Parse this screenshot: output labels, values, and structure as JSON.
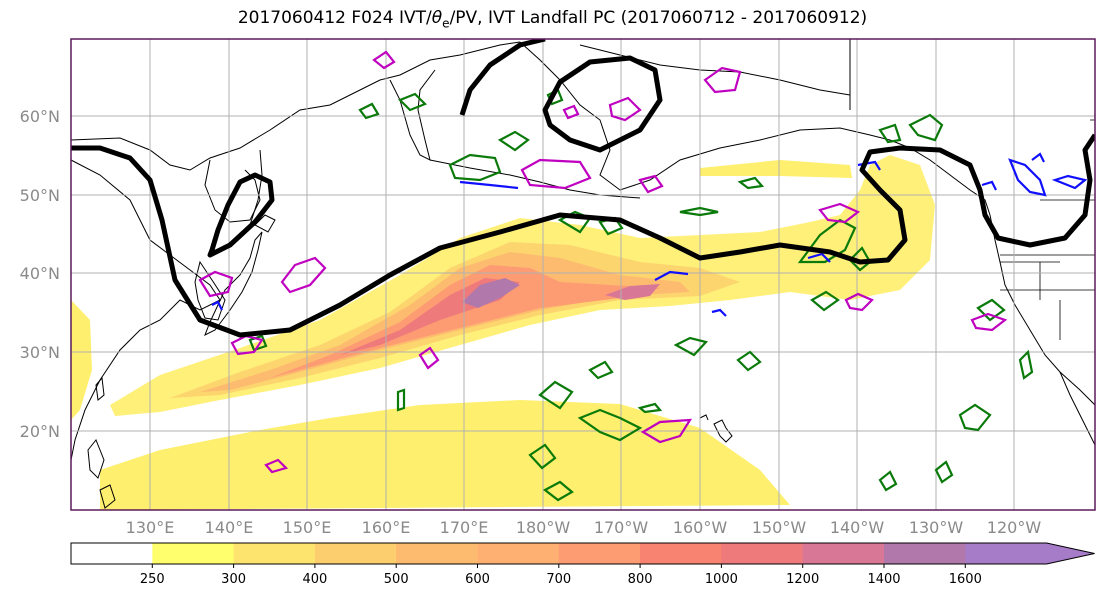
{
  "title": {
    "prefix": "2017060412 F024 IVT/",
    "theta": "θ",
    "theta_sub": "e",
    "suffix": "/PV, IVT Landfall PC (2017060712 - 2017060912)"
  },
  "map": {
    "projection": "equirectangular",
    "lon_range": [
      120,
      -113
    ],
    "lat_range": [
      10,
      70
    ],
    "lat_ticks": [
      {
        "lat": 60,
        "label": "60°N"
      },
      {
        "lat": 50,
        "label": "50°N"
      },
      {
        "lat": 40,
        "label": "40°N"
      },
      {
        "lat": 30,
        "label": "30°N"
      },
      {
        "lat": 20,
        "label": "20°N"
      }
    ],
    "lon_ticks": [
      {
        "lon": 130,
        "label": "130°E"
      },
      {
        "lon": 140,
        "label": "140°E"
      },
      {
        "lon": 150,
        "label": "150°E"
      },
      {
        "lon": 160,
        "label": "160°E"
      },
      {
        "lon": 170,
        "label": "170°E"
      },
      {
        "lon": 180,
        "label": "180°W"
      },
      {
        "lon": 190,
        "label": "170°W"
      },
      {
        "lon": 200,
        "label": "160°W"
      },
      {
        "lon": 210,
        "label": "150°W"
      },
      {
        "lon": 220,
        "label": "140°W"
      },
      {
        "lon": 230,
        "label": "130°W"
      },
      {
        "lon": 240,
        "label": "120°W"
      }
    ],
    "grid": true,
    "colors": {
      "coast": "#000000",
      "grid": "#b0b0b0",
      "pv_contour": "#000000",
      "theta_e_contour": "#0a7a0a",
      "pc_magenta": "#c000c0",
      "pc_blue": "#1010ff",
      "frame": "#5a1a5a"
    }
  },
  "colorbar": {
    "levels": [
      "250",
      "300",
      "400",
      "500",
      "600",
      "700",
      "800",
      "1000",
      "1200",
      "1400",
      "1600"
    ],
    "colors": [
      "#ffff6e",
      "#fde46e",
      "#fcce6e",
      "#fdbb6f",
      "#feb072",
      "#fd9b73",
      "#f88370",
      "#ee7a7c",
      "#d97796",
      "#b179ab",
      "#a67bc8"
    ],
    "extend": "max"
  }
}
